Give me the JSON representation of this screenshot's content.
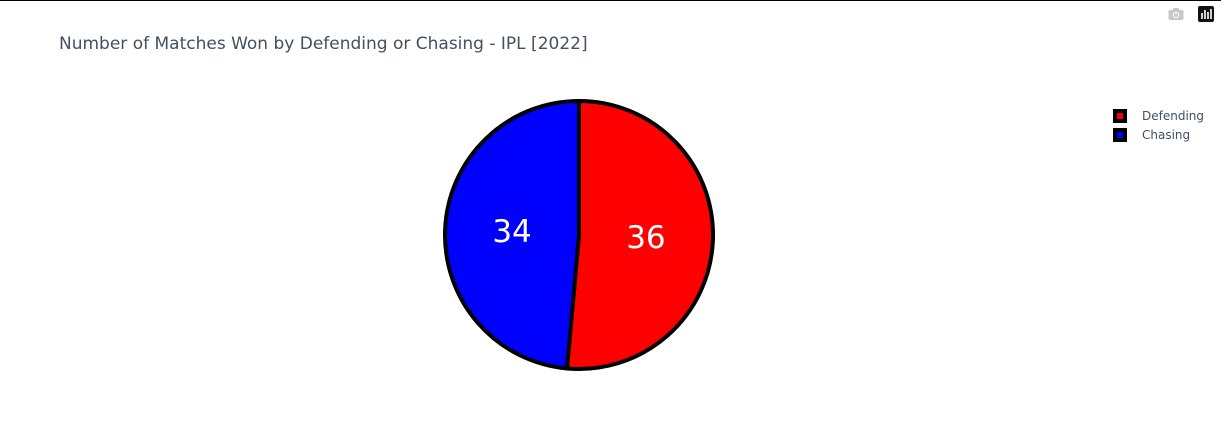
{
  "chart_data": {
    "type": "pie",
    "title": "Number of Matches Won by Defending or Chasing - IPL [2022]",
    "slices": [
      {
        "label": "Defending",
        "value": 36,
        "color": "#ff0000"
      },
      {
        "label": "Chasing",
        "value": 34,
        "color": "#0000ff"
      }
    ],
    "text_info": "value",
    "outline_color": "#000000",
    "legend_placement": "top-right"
  },
  "modebar": {
    "icons": [
      "camera-icon",
      "plotly-logo-icon"
    ]
  }
}
